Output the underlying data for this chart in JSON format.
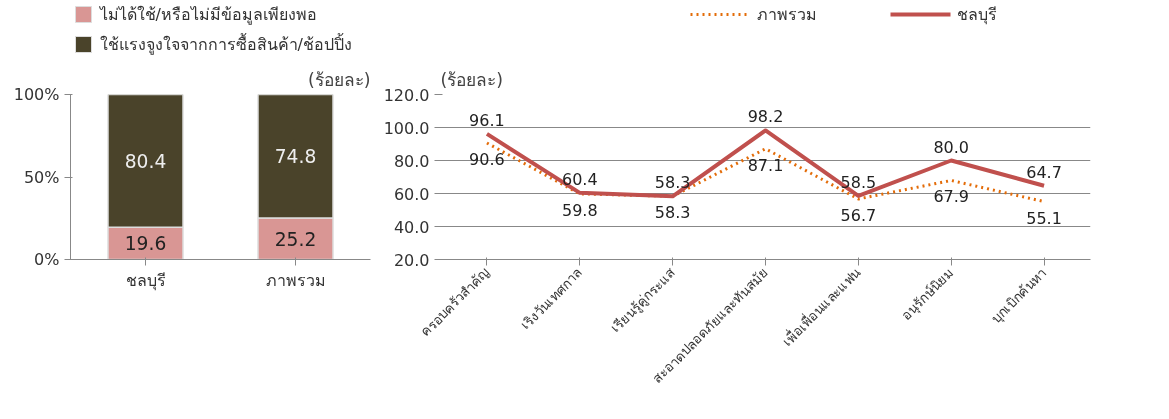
{
  "chart_data": [
    {
      "type": "bar",
      "stacked": true,
      "ylabel": "(ร้อยละ)",
      "categories": [
        "ชลบุรี",
        "ภาพรวม"
      ],
      "series": [
        {
          "name": "ไม่ได้ใช้/หรือไม่มีข้อมูลเพียงพอ",
          "color": "#d99694",
          "values": [
            19.6,
            25.2
          ]
        },
        {
          "name": "ใช้แรงจูงใจจากการซื้อสินค้า/ช้อปปิ้ง",
          "color": "#4a432a",
          "values": [
            80.4,
            74.8
          ]
        }
      ],
      "ylim": [
        0,
        100
      ],
      "yticks": [
        {
          "value": 0,
          "label": "0%"
        },
        {
          "value": 50,
          "label": "50%"
        },
        {
          "value": 100,
          "label": "100%"
        }
      ],
      "data_labels": true,
      "legend": "top",
      "grid": false
    },
    {
      "type": "line",
      "ylabel": "(ร้อยละ)",
      "categories": [
        "ครอบครัวสำคัญ",
        "เริงวันเทศกาล",
        "เรียนรู้คู่กระแส",
        "สะอาดปลอดภัยและทันสมัย",
        "เพื่อเพื่อนและแฟน",
        "อนุรักษ์นิยม",
        "บุกเบิกค้นหา"
      ],
      "series": [
        {
          "name": "ภาพรวม",
          "color": "#e36c09",
          "line_style": "dotted",
          "values": [
            90.6,
            59.8,
            58.3,
            87.1,
            56.7,
            67.9,
            55.1
          ],
          "value_labels": [
            "90.6",
            "59.8",
            "58.3",
            "87.1",
            "56.7",
            "67.9",
            "55.1"
          ]
        },
        {
          "name": "ชลบุรี",
          "color": "#c0504d",
          "line_style": "solid",
          "values": [
            96.1,
            60.4,
            58.3,
            98.2,
            58.5,
            80.0,
            64.7
          ],
          "value_labels": [
            "96.1",
            "60.4",
            "58.3",
            "98.2",
            "58.5",
            "80.0",
            "64.7"
          ]
        }
      ],
      "ylim": [
        20,
        120
      ],
      "yticks": [
        {
          "value": 20,
          "label": "20.0"
        },
        {
          "value": 40,
          "label": "40.0"
        },
        {
          "value": 60,
          "label": "60.0"
        },
        {
          "value": 80,
          "label": "80.0"
        },
        {
          "value": 100,
          "label": "100.0"
        },
        {
          "value": 120,
          "label": "120.0"
        }
      ],
      "legend": "top",
      "grid": "y",
      "marker": "none"
    }
  ]
}
